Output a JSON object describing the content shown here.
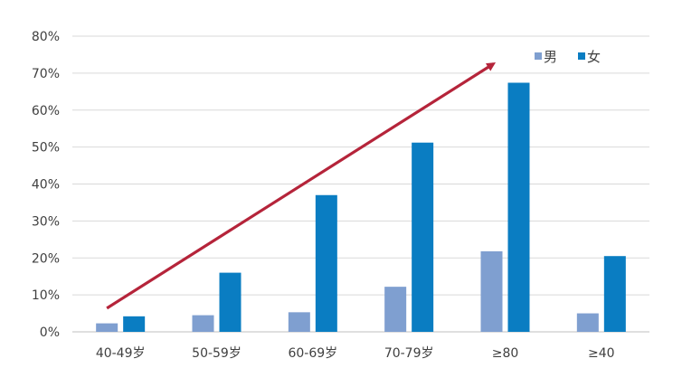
{
  "chart_data": {
    "type": "bar",
    "categories": [
      "40-49岁",
      "50-59岁",
      "60-69岁",
      "70-79岁",
      "≥80",
      "≥40"
    ],
    "series": [
      {
        "name": "男",
        "values": [
          2.3,
          4.5,
          5.3,
          12.2,
          21.8,
          5.0
        ],
        "color": "#7f9fd0"
      },
      {
        "name": "女",
        "values": [
          4.2,
          16.0,
          37.0,
          51.2,
          67.4,
          20.5
        ],
        "color": "#0a7dc2"
      }
    ],
    "ylim": [
      0,
      80
    ],
    "yticks": [
      0,
      10,
      20,
      30,
      40,
      50,
      60,
      70,
      80
    ],
    "ytick_labels": [
      "0%",
      "10%",
      "20%",
      "30%",
      "40%",
      "50%",
      "60%",
      "70%",
      "80%"
    ],
    "grid": true,
    "legend_position": "top-right",
    "trend_arrow": {
      "from_category": "40-49岁",
      "to_category": "≥80",
      "color": "#b5243a"
    }
  }
}
